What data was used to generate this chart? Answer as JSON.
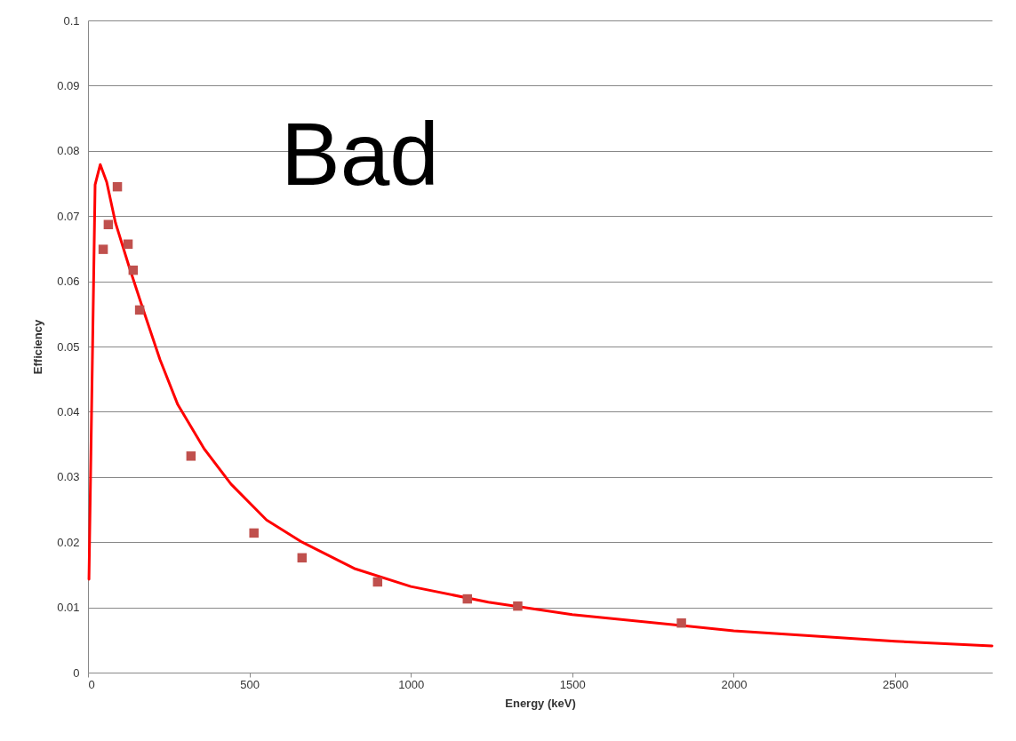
{
  "chart_data": {
    "type": "scatter",
    "xlabel": "Energy (keV)",
    "ylabel": "Efficiency",
    "annotations": [
      "Bad"
    ],
    "xlim": [
      0,
      2800
    ],
    "xticks": [
      0,
      500,
      1000,
      1500,
      2000,
      2500
    ],
    "ylim": [
      0,
      0.1
    ],
    "yticks": [
      0,
      0.01,
      0.02,
      0.03,
      0.04,
      0.05,
      0.06,
      0.07,
      0.08,
      0.09,
      0.1
    ],
    "grid": "y",
    "series": [
      {
        "type": "line",
        "color": "#ff0000",
        "marker": "none",
        "line_style": "solid",
        "x": [
          3,
          22,
          38,
          58,
          85,
          127,
          168,
          223,
          278,
          360,
          443,
          553,
          663,
          828,
          1000,
          1240,
          1500,
          2000,
          2500,
          2800
        ],
        "values": [
          0.0143,
          0.0748,
          0.0779,
          0.0752,
          0.069,
          0.0623,
          0.0561,
          0.048,
          0.0411,
          0.0343,
          0.0289,
          0.0234,
          0.02,
          0.0159,
          0.0132,
          0.0108,
          0.0089,
          0.0064,
          0.0048,
          0.0041
        ]
      },
      {
        "color": "#c0504d",
        "marker": "square",
        "x": [
          47,
          63,
          91,
          124,
          140,
          160,
          319,
          514,
          663,
          897,
          1175,
          1331,
          1838
        ],
        "values": [
          0.0649,
          0.0687,
          0.0745,
          0.0657,
          0.0617,
          0.0556,
          0.0332,
          0.0214,
          0.0176,
          0.0139,
          0.0113,
          0.0102,
          0.0076
        ]
      }
    ]
  }
}
